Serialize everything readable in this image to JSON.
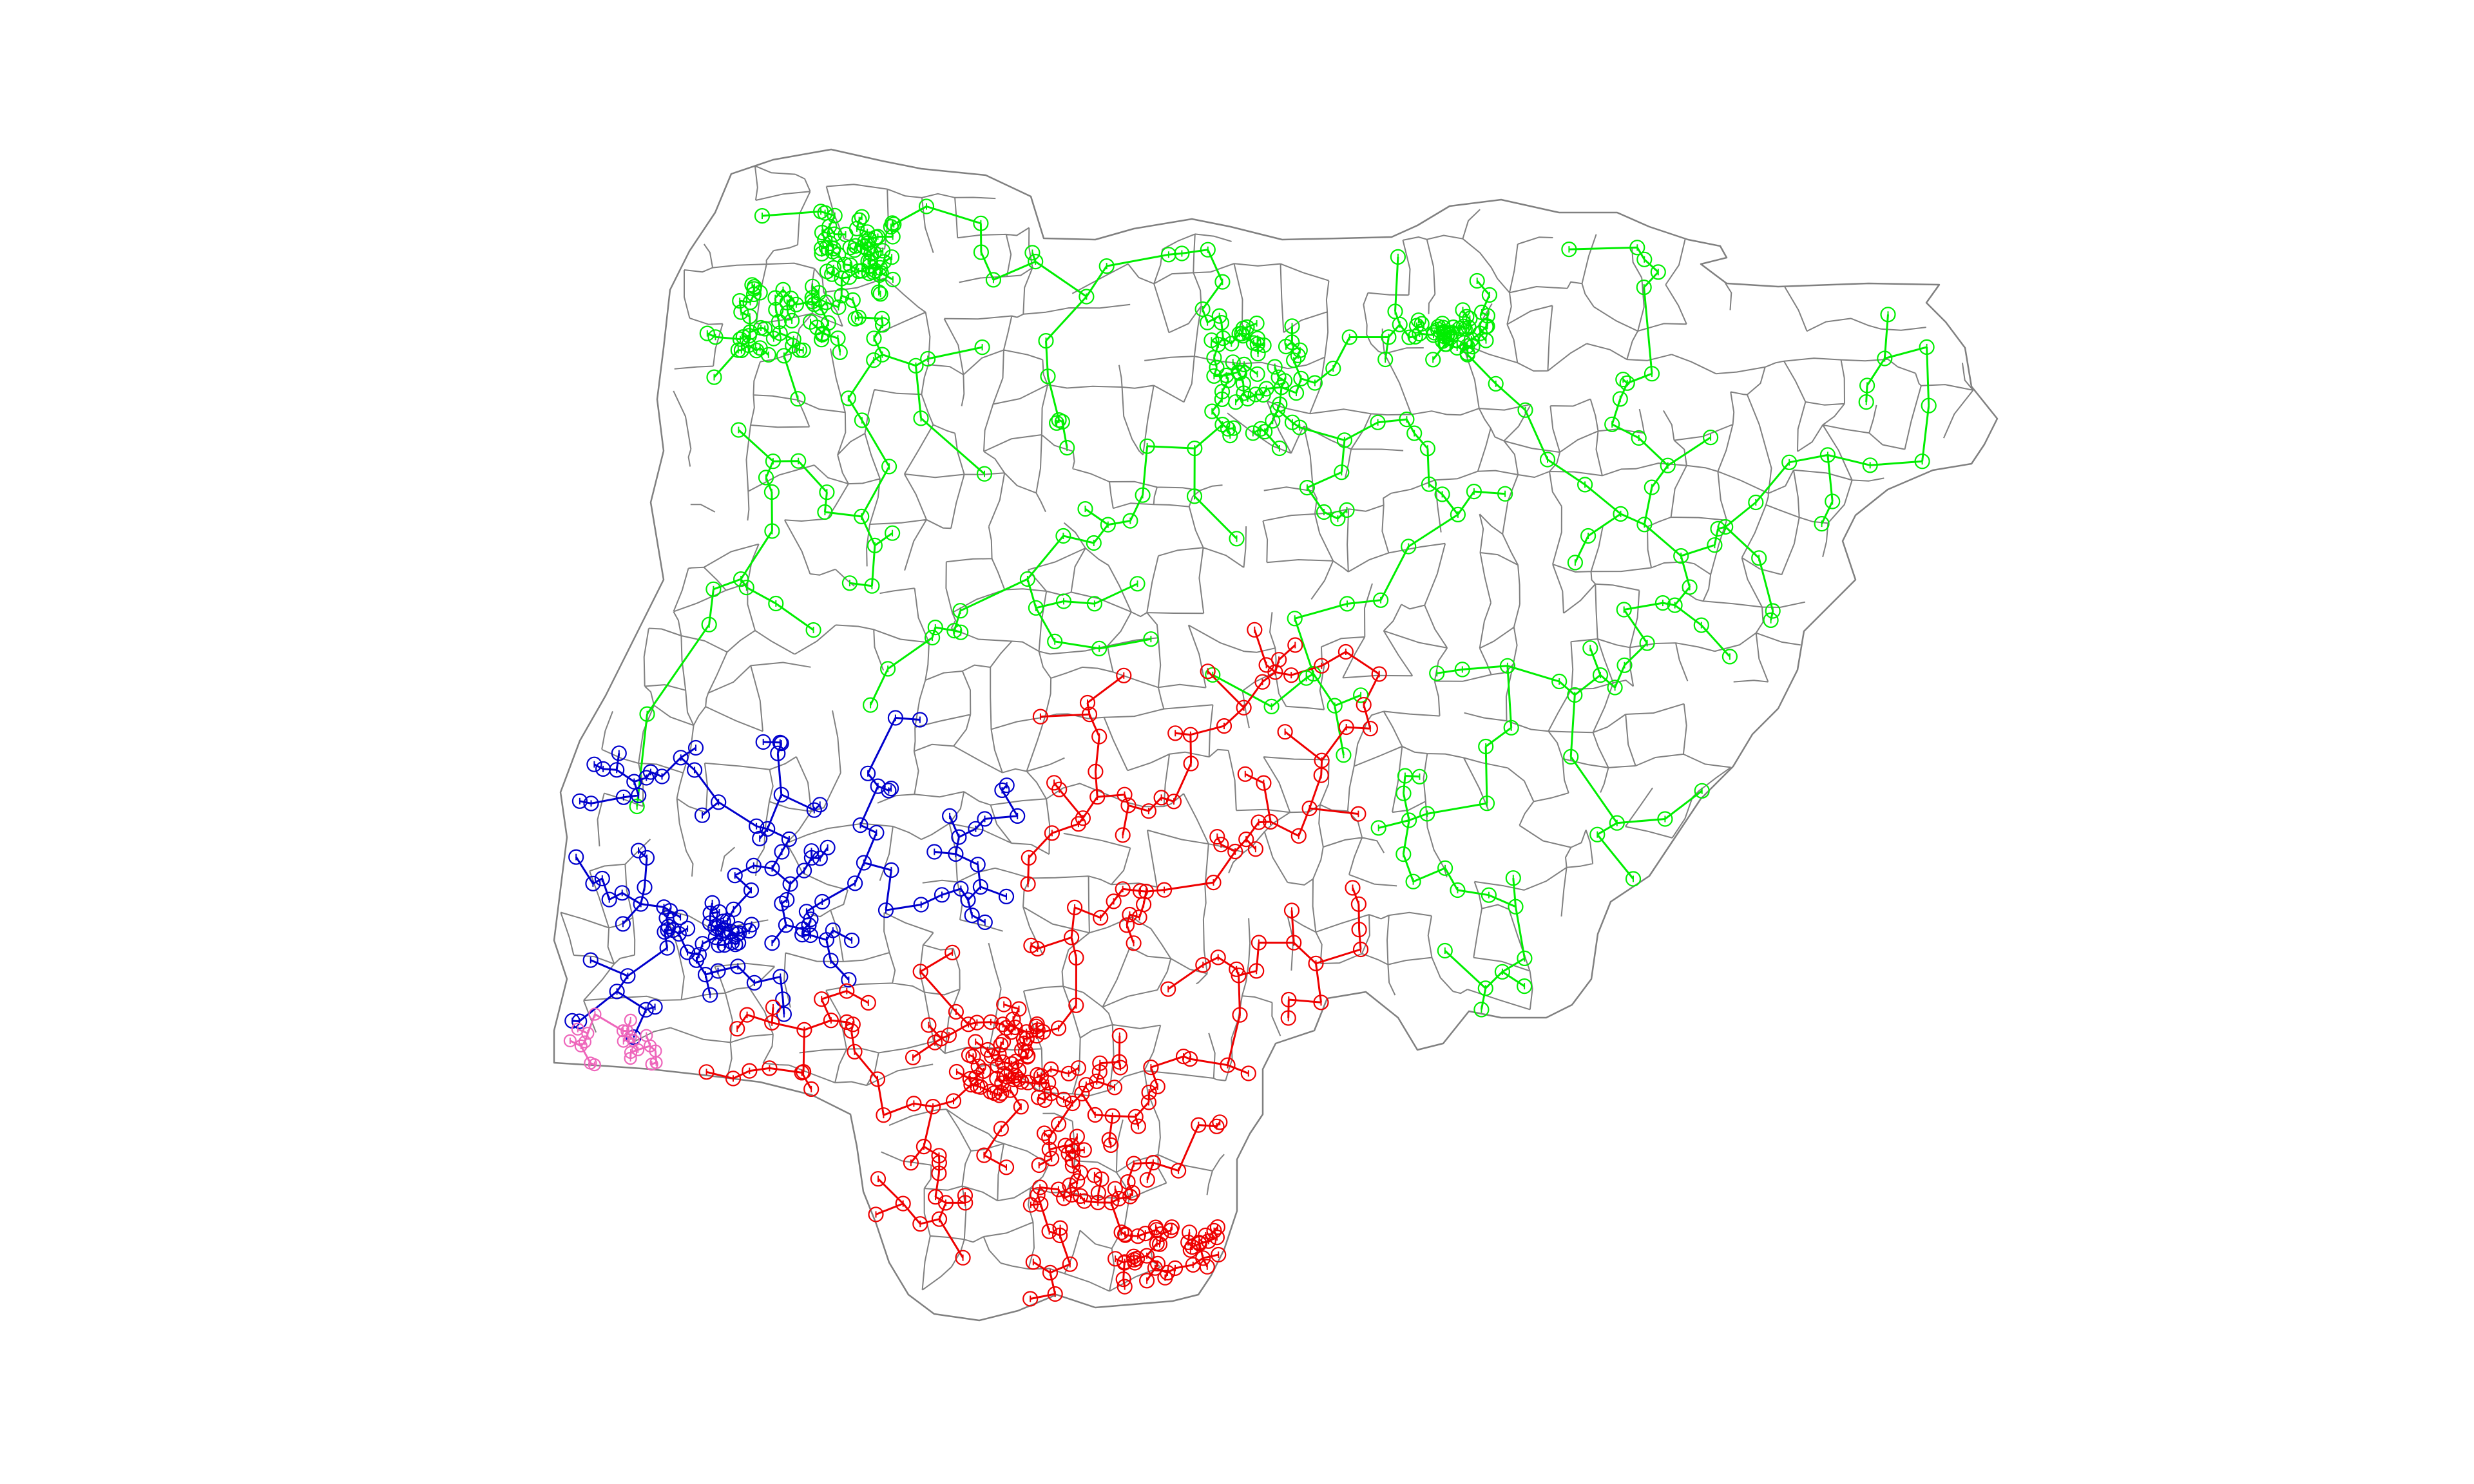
{
  "map": {
    "background": "#ffffff",
    "boundary_color": "#808080",
    "clusters": [
      {
        "key": "north",
        "color": "#00ee00"
      },
      {
        "key": "southwest",
        "color": "#0000cc"
      },
      {
        "key": "south",
        "color": "#ee0000"
      },
      {
        "key": "lagos",
        "color": "#ee66bb"
      }
    ]
  }
}
